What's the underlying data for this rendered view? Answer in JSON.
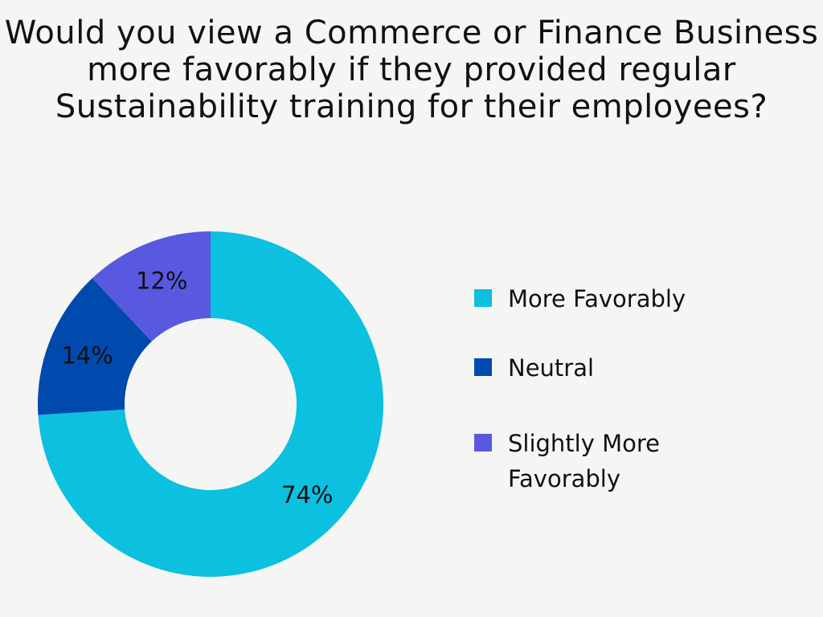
{
  "chart_data": {
    "type": "pie",
    "donut": true,
    "title": "Would you view a Commerce or Finance Business more favorably if they provided regular Sustainability training for their employees?",
    "legend_position": "right",
    "slices": [
      {
        "label": "More Favorably",
        "value": 74,
        "value_label": "74%",
        "color": "#0CC0DF"
      },
      {
        "label": "Neutral",
        "value": 14,
        "value_label": "14%",
        "color": "#004AAD"
      },
      {
        "label": "Slightly More Favorably",
        "value": 12,
        "value_label": "12%",
        "color": "#5858E0"
      }
    ]
  }
}
